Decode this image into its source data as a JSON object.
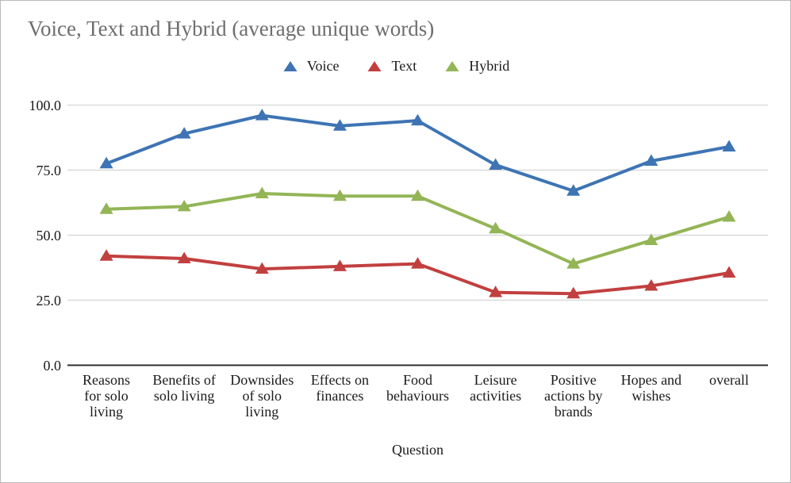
{
  "chart_data": {
    "type": "line",
    "title": "Voice, Text and Hybrid (average unique words)",
    "xlabel": "Question",
    "ylabel": "",
    "ylim": [
      0,
      100
    ],
    "yticks": [
      0,
      25,
      50,
      75,
      100
    ],
    "ytick_labels": [
      "0.0",
      "25.0",
      "50.0",
      "75.0",
      "100.0"
    ],
    "grid": true,
    "legend_position": "top",
    "marker": "triangle-up",
    "grid_color": "#d9d9d9",
    "axis_color": "#2e2e2e",
    "title_color": "#6e6e6e",
    "categories": [
      "Reasons for solo living",
      "Benefits of solo living",
      "Downsides of solo living",
      "Effects on finances",
      "Food behaviours",
      "Leisure activities",
      "Positive actions by brands",
      "Hopes and wishes",
      "overall"
    ],
    "category_label_lines": [
      [
        "Reasons",
        "for solo",
        "living"
      ],
      [
        "Benefits of",
        "solo living"
      ],
      [
        "Downsides",
        "of solo",
        "living"
      ],
      [
        "Effects on",
        "finances"
      ],
      [
        "Food",
        "behaviours"
      ],
      [
        "Leisure",
        "activities"
      ],
      [
        "Positive",
        "actions by",
        "brands"
      ],
      [
        "Hopes and",
        "wishes"
      ],
      [
        "overall"
      ]
    ],
    "series": [
      {
        "name": "Voice",
        "color": "#3e74b4",
        "values": [
          77.5,
          89,
          96,
          92,
          94,
          77,
          67,
          78.5,
          84
        ]
      },
      {
        "name": "Text",
        "color": "#c1403f",
        "values": [
          42,
          41,
          37,
          38,
          39,
          28,
          27.5,
          30.5,
          35.5
        ]
      },
      {
        "name": "Hybrid",
        "color": "#93b556",
        "values": [
          60,
          61,
          66,
          65,
          65,
          52.5,
          39,
          48,
          57
        ]
      }
    ]
  }
}
